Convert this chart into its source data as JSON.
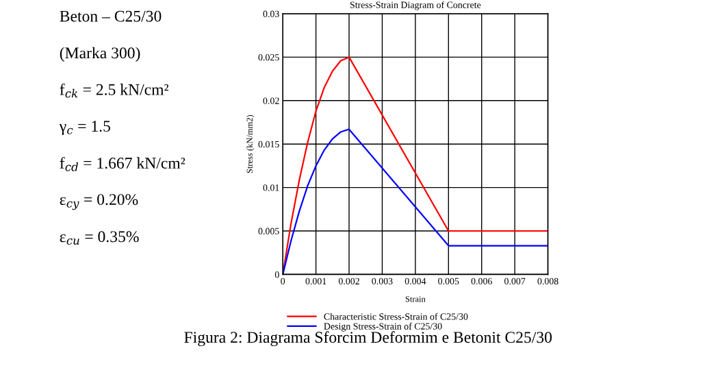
{
  "chart_data": [
    {
      "type": "other",
      "annotations": [
        "Beton – C25/30",
        "(Marka 300)",
        "f$_{ck}$ = 2.5 kN/cm²",
        "γ$_{c}$ = 1.5",
        "f$_{cd}$ = 1.667 kN/cm²",
        "ε$_{cy}$ = 0.20%",
        "ε$_{cu}$ = 0.35%"
      ]
    },
    {
      "type": "line",
      "title": "Stress-Strain Diagram of Concrete",
      "xlabel": "Strain",
      "ylabel": "Stress (kN/mm2)",
      "x": [
        0,
        0.00025,
        0.0005,
        0.00075,
        0.001,
        0.00125,
        0.0015,
        0.00175,
        0.002,
        0.005,
        0.008
      ],
      "series": [
        {
          "name": "Characteristic Stress-Strain of C25/30",
          "color": "#ff0000",
          "values": [
            0,
            0.0059,
            0.0109,
            0.0152,
            0.0188,
            0.0215,
            0.0234,
            0.0246,
            0.025,
            0.005,
            0.005
          ]
        },
        {
          "name": "Design Stress-Strain of C25/30",
          "color": "#0000ff",
          "values": [
            0,
            0.0039,
            0.0073,
            0.0102,
            0.0125,
            0.0143,
            0.0156,
            0.0164,
            0.0167,
            0.0033,
            0.0033
          ]
        }
      ],
      "xlim": [
        0,
        0.008
      ],
      "ylim": [
        0,
        0.03
      ],
      "xticks": [
        0,
        0.001,
        0.002,
        0.003,
        0.004,
        0.005,
        0.006,
        0.007,
        0.008
      ],
      "yticks": [
        0,
        0.005,
        0.01,
        0.015,
        0.02,
        0.025,
        0.03
      ],
      "grid": true,
      "legend": "bottom",
      "annotations": [
        "Figura 2: Diagrama Sforcim Deformim e Betonit C25/30"
      ]
    }
  ]
}
